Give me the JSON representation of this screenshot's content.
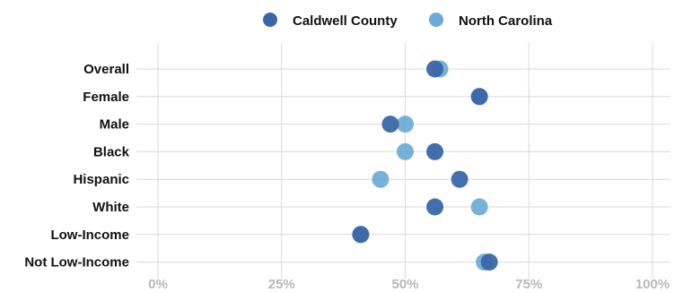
{
  "chart_data": {
    "type": "scatter",
    "categories": [
      "Overall",
      "Female",
      "Male",
      "Black",
      "Hispanic",
      "White",
      "Low-Income",
      "Not Low-Income"
    ],
    "series": [
      {
        "name": "Caldwell County",
        "color": "#3a67a8",
        "values": [
          56,
          65,
          47,
          56,
          61,
          56,
          41,
          67
        ]
      },
      {
        "name": "North Carolina",
        "color": "#6aaad6",
        "values": [
          57,
          65,
          50,
          50,
          45,
          65,
          41,
          66
        ]
      }
    ],
    "x_ticks": [
      "0%",
      "25%",
      "50%",
      "75%",
      "100%"
    ],
    "xlim": [
      0,
      100
    ],
    "grid": true,
    "legend_position": "top-center"
  }
}
